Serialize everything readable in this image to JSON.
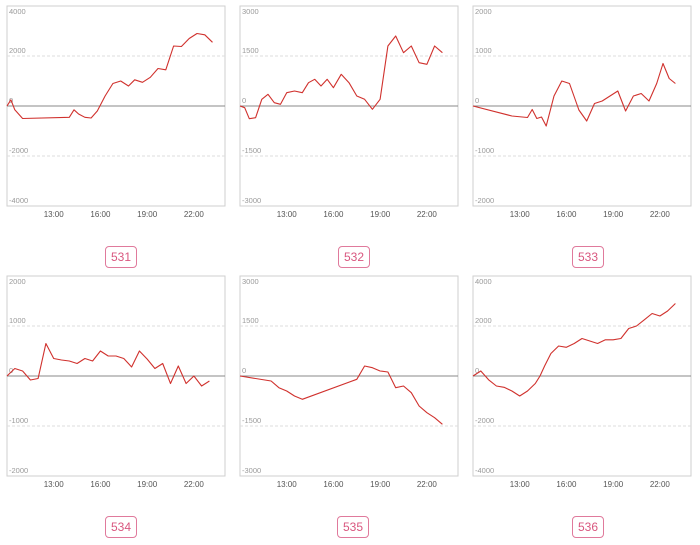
{
  "chart_data": [
    {
      "type": "line",
      "label": "531",
      "ylim": [
        -4000,
        4000
      ],
      "yticks": [
        4000,
        2000,
        0,
        -2000,
        -4000
      ],
      "yticklabels": [
        "4000",
        "2000",
        "0",
        "-2000",
        "-4000"
      ],
      "xticks": [
        "13:00",
        "16:00",
        "19:00",
        "22:00"
      ],
      "series": [
        {
          "color": "#d0312d",
          "x": [
            10.0,
            10.25,
            10.5,
            11.0,
            14.0,
            14.3,
            14.6,
            15.0,
            15.4,
            15.8,
            16.3,
            16.8,
            17.3,
            17.8,
            18.2,
            18.7,
            19.2,
            19.7,
            20.2,
            20.7,
            21.2,
            21.7,
            22.2,
            22.7,
            23.2
          ],
          "y": [
            0,
            250,
            -150,
            -500,
            -450,
            -150,
            -320,
            -450,
            -480,
            -200,
            400,
            900,
            1000,
            800,
            1050,
            950,
            1150,
            1500,
            1450,
            2400,
            2380,
            2700,
            2900,
            2850,
            2550
          ]
        }
      ]
    },
    {
      "type": "line",
      "label": "532",
      "ylim": [
        -3000,
        3000
      ],
      "yticks": [
        3000,
        1500,
        0,
        -1500,
        -3000
      ],
      "yticklabels": [
        "3000",
        "1500",
        "0",
        "-1500",
        "-3000"
      ],
      "xticks": [
        "13:00",
        "16:00",
        "19:00",
        "22:00"
      ],
      "series": [
        {
          "color": "#d0312d",
          "x": [
            10.0,
            10.3,
            10.6,
            11.0,
            11.4,
            11.8,
            12.2,
            12.6,
            13.0,
            13.5,
            14.0,
            14.4,
            14.8,
            15.2,
            15.6,
            16.0,
            16.5,
            17.0,
            17.5,
            18.0,
            18.5,
            19.0,
            19.5,
            20.0,
            20.5,
            21.0,
            21.5,
            22.0,
            22.5,
            23.0
          ],
          "y": [
            0,
            -50,
            -380,
            -350,
            200,
            350,
            100,
            50,
            400,
            450,
            400,
            700,
            800,
            600,
            800,
            550,
            950,
            700,
            300,
            200,
            -100,
            200,
            1800,
            2100,
            1600,
            1800,
            1300,
            1250,
            1800,
            1600
          ]
        }
      ]
    },
    {
      "type": "line",
      "label": "533",
      "ylim": [
        -2000,
        2000
      ],
      "yticks": [
        2000,
        1000,
        0,
        -1000,
        -2000
      ],
      "yticklabels": [
        "2000",
        "1000",
        "0",
        "-1000",
        "-2000"
      ],
      "xticks": [
        "13:00",
        "16:00",
        "19:00",
        "22:00"
      ],
      "series": [
        {
          "color": "#d0312d",
          "x": [
            10.0,
            12.5,
            13.5,
            13.8,
            14.1,
            14.4,
            14.7,
            15.2,
            15.7,
            16.2,
            16.8,
            17.3,
            17.8,
            18.3,
            18.8,
            19.3,
            19.8,
            20.3,
            20.8,
            21.3,
            21.8,
            22.2,
            22.6,
            23.0
          ],
          "y": [
            0,
            -200,
            -230,
            -70,
            -250,
            -220,
            -400,
            200,
            500,
            450,
            -80,
            -300,
            50,
            100,
            200,
            300,
            -100,
            200,
            250,
            100,
            450,
            850,
            550,
            450
          ]
        }
      ]
    },
    {
      "type": "line",
      "label": "534",
      "ylim": [
        -2000,
        2000
      ],
      "yticks": [
        2000,
        1000,
        0,
        -1000,
        -2000
      ],
      "yticklabels": [
        "2000",
        "1000",
        "0",
        "-1000",
        "-2000"
      ],
      "xticks": [
        "13:00",
        "16:00",
        "19:00",
        "22:00"
      ],
      "series": [
        {
          "color": "#d0312d",
          "x": [
            10.0,
            10.5,
            11.0,
            11.5,
            12.0,
            12.5,
            13.0,
            13.5,
            14.0,
            14.5,
            15.0,
            15.5,
            16.0,
            16.5,
            17.0,
            17.5,
            18.0,
            18.5,
            19.0,
            19.5,
            20.0,
            20.5,
            21.0,
            21.5,
            22.0,
            22.5,
            23.0
          ],
          "y": [
            0,
            150,
            100,
            -80,
            -50,
            650,
            350,
            320,
            300,
            250,
            350,
            300,
            500,
            400,
            400,
            350,
            180,
            500,
            340,
            150,
            250,
            -150,
            200,
            -150,
            0,
            -200,
            -100
          ]
        }
      ]
    },
    {
      "type": "line",
      "label": "535",
      "ylim": [
        -3000,
        3000
      ],
      "yticks": [
        3000,
        1500,
        0,
        -1500,
        -3000
      ],
      "yticklabels": [
        "3000",
        "1500",
        "0",
        "-1500",
        "-3000"
      ],
      "xticks": [
        "13:00",
        "16:00",
        "19:00",
        "22:00"
      ],
      "series": [
        {
          "color": "#d0312d",
          "x": [
            10.0,
            12.0,
            12.5,
            13.0,
            13.5,
            14.0,
            17.5,
            18.0,
            18.5,
            19.0,
            19.5,
            20.0,
            20.5,
            21.0,
            21.5,
            22.0,
            22.5,
            23.0
          ],
          "y": [
            0,
            -150,
            -350,
            -450,
            -600,
            -700,
            -100,
            300,
            250,
            150,
            120,
            -350,
            -300,
            -500,
            -900,
            -1100,
            -1250,
            -1450
          ]
        }
      ]
    },
    {
      "type": "line",
      "label": "536",
      "ylim": [
        -4000,
        4000
      ],
      "yticks": [
        4000,
        2000,
        0,
        -2000,
        -4000
      ],
      "yticklabels": [
        "4000",
        "2000",
        "0",
        "-2000",
        "-4000"
      ],
      "xticks": [
        "13:00",
        "16:00",
        "19:00",
        "22:00"
      ],
      "series": [
        {
          "color": "#d0312d",
          "x": [
            10.0,
            10.5,
            11.0,
            11.5,
            12.0,
            12.5,
            13.0,
            13.5,
            14.0,
            14.3,
            14.6,
            15.0,
            15.5,
            16.0,
            16.5,
            17.0,
            17.5,
            18.0,
            18.5,
            19.0,
            19.5,
            20.0,
            20.5,
            21.0,
            21.5,
            22.0,
            22.5,
            23.0
          ],
          "y": [
            0,
            200,
            -150,
            -400,
            -450,
            -600,
            -800,
            -600,
            -300,
            0,
            400,
            900,
            1200,
            1150,
            1300,
            1500,
            1400,
            1300,
            1450,
            1450,
            1500,
            1900,
            2000,
            2250,
            2500,
            2400,
            2600,
            2900
          ]
        }
      ]
    }
  ]
}
